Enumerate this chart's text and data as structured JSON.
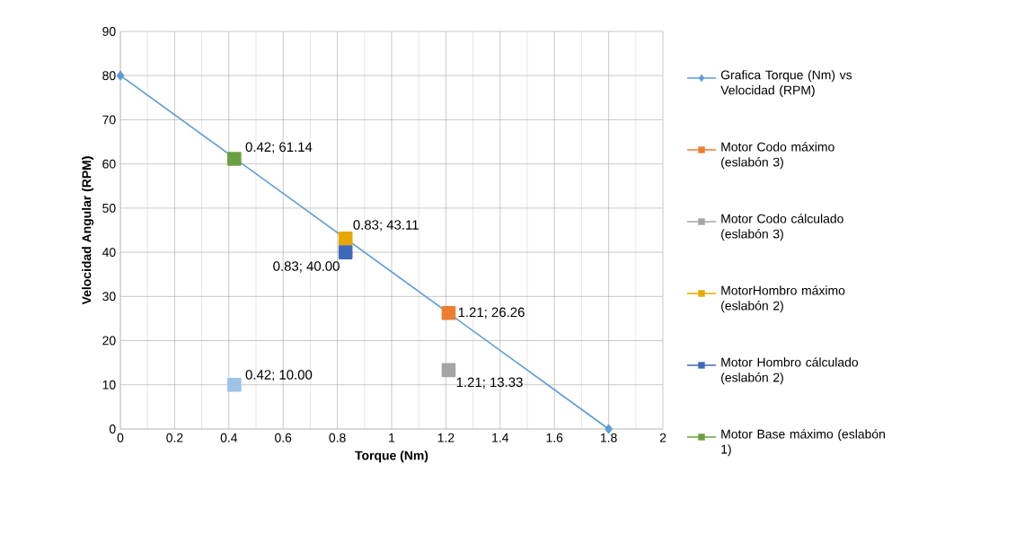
{
  "chart_data": {
    "type": "line",
    "xlabel": "Torque (Nm)",
    "ylabel": "Velocidad Angular (RPM)",
    "xlim": [
      0,
      2
    ],
    "xticks": [
      0,
      0.2,
      0.4,
      0.6,
      0.8,
      1,
      1.2,
      1.4,
      1.6,
      1.8,
      2
    ],
    "ylim": [
      0,
      90
    ],
    "yticks": [
      0,
      10,
      20,
      30,
      40,
      50,
      60,
      70,
      80,
      90
    ],
    "grid": true,
    "legend": "right",
    "marker": "square",
    "series": [
      {
        "name": "Grafica Torque (Nm) vs Velocidad (RPM)",
        "color": "#5b9bd5",
        "marker": "diamond",
        "x": [
          0,
          1.8
        ],
        "values": [
          80,
          0
        ]
      },
      {
        "name": "Motor Codo máximo (eslabón 3)",
        "color": "#ed7d31",
        "x": [
          1.21
        ],
        "values": [
          26.26
        ],
        "value_labels": [
          "1.21; 26.26"
        ]
      },
      {
        "name": "Motor Codo cálculado (eslabón 3)",
        "color": "#a5a5a5",
        "x": [
          1.21
        ],
        "values": [
          13.33
        ],
        "value_labels": [
          "1.21; 13.33"
        ]
      },
      {
        "name": "MotorHombro máximo (eslabón 2)",
        "color": "#e6a800",
        "x": [
          0.83
        ],
        "values": [
          43.11
        ],
        "value_labels": [
          "0.83; 43.11"
        ]
      },
      {
        "name": "Motor Hombro cálculado (eslabón 2)",
        "color": "#4068b8",
        "x": [
          0.83
        ],
        "values": [
          40.0
        ],
        "value_labels": [
          "0.83; 40.00"
        ]
      },
      {
        "name": "Motor Base máximo (eslabón 1)",
        "color": "#6aa042",
        "x": [
          0.42
        ],
        "values": [
          61.14
        ],
        "value_labels": [
          "0.42; 61.14"
        ]
      },
      {
        "color": "#9dc3e6",
        "x": [
          0.42
        ],
        "values": [
          10.0
        ],
        "value_labels": [
          "0.42; 10.00"
        ]
      }
    ]
  }
}
